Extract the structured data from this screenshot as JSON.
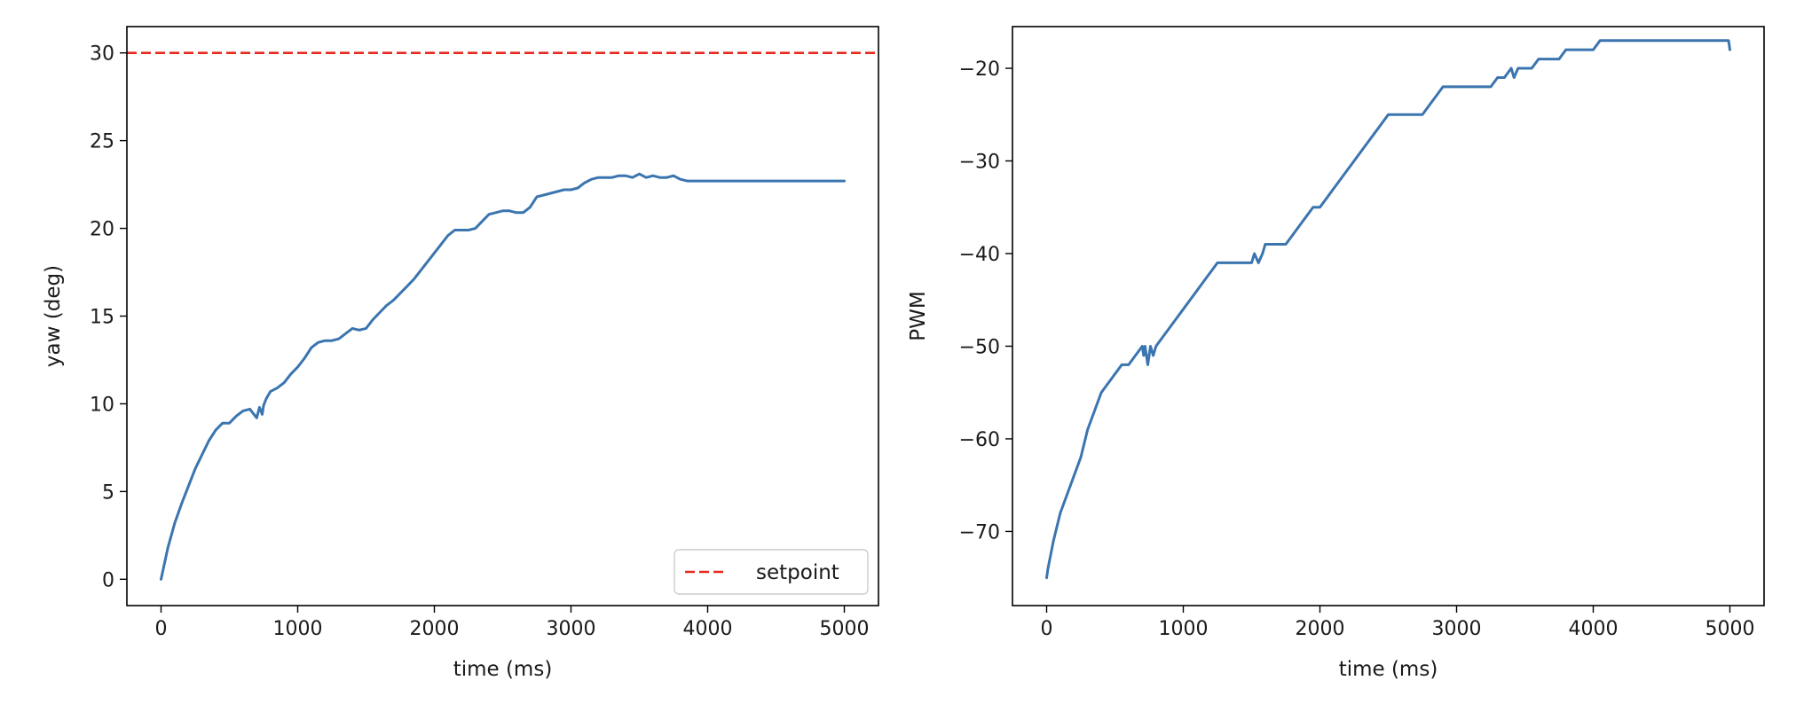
{
  "chart_data": [
    {
      "type": "line",
      "xlabel": "time (ms)",
      "ylabel": "yaw (deg)",
      "xlim": [
        -250,
        5250
      ],
      "ylim": [
        -1.5,
        31.5
      ],
      "xticks": [
        0,
        1000,
        2000,
        3000,
        4000,
        5000
      ],
      "yticks": [
        0,
        5,
        10,
        15,
        20,
        25,
        30
      ],
      "grid": false,
      "legend": {
        "position": "lower-right",
        "entries": [
          "setpoint"
        ]
      },
      "hlines": [
        {
          "name": "setpoint",
          "y": 30,
          "color": "#e8281e",
          "style": "dashed"
        }
      ],
      "series": [
        {
          "color": "#3b75af",
          "x": [
            0,
            50,
            100,
            150,
            200,
            250,
            300,
            350,
            400,
            450,
            500,
            550,
            600,
            650,
            700,
            720,
            740,
            750,
            770,
            800,
            850,
            900,
            950,
            1000,
            1050,
            1100,
            1150,
            1200,
            1250,
            1300,
            1350,
            1400,
            1450,
            1500,
            1550,
            1600,
            1650,
            1700,
            1750,
            1800,
            1850,
            1900,
            1950,
            2000,
            2050,
            2100,
            2150,
            2200,
            2250,
            2300,
            2350,
            2400,
            2450,
            2500,
            2550,
            2600,
            2650,
            2700,
            2750,
            2800,
            2850,
            2900,
            2950,
            3000,
            3050,
            3100,
            3150,
            3200,
            3250,
            3300,
            3350,
            3400,
            3450,
            3500,
            3550,
            3600,
            3650,
            3700,
            3750,
            3800,
            3850,
            3900,
            3950,
            4000,
            4050,
            4100,
            4150,
            4200,
            4250,
            4300,
            4350,
            4400,
            4450,
            4500,
            4550,
            4600,
            4650,
            4700,
            4750,
            4800,
            4850,
            4900,
            4950,
            5000
          ],
          "y": [
            0.0,
            1.8,
            3.2,
            4.3,
            5.3,
            6.3,
            7.1,
            7.9,
            8.5,
            8.9,
            8.9,
            9.3,
            9.6,
            9.7,
            9.2,
            9.8,
            9.4,
            9.9,
            10.3,
            10.7,
            10.9,
            11.2,
            11.7,
            12.1,
            12.6,
            13.2,
            13.5,
            13.6,
            13.6,
            13.7,
            14.0,
            14.3,
            14.2,
            14.3,
            14.8,
            15.2,
            15.6,
            15.9,
            16.3,
            16.7,
            17.1,
            17.6,
            18.1,
            18.6,
            19.1,
            19.6,
            19.9,
            19.9,
            19.9,
            20.0,
            20.4,
            20.8,
            20.9,
            21.0,
            21.0,
            20.9,
            20.9,
            21.2,
            21.8,
            21.9,
            22.0,
            22.1,
            22.2,
            22.2,
            22.3,
            22.6,
            22.8,
            22.9,
            22.9,
            22.9,
            23.0,
            23.0,
            22.9,
            23.1,
            22.9,
            23.0,
            22.9,
            22.9,
            23.0,
            22.8,
            22.7,
            22.7,
            22.7,
            22.7,
            22.7,
            22.7,
            22.7,
            22.7,
            22.7,
            22.7,
            22.7,
            22.7,
            22.7,
            22.7,
            22.7,
            22.7,
            22.7,
            22.7,
            22.7,
            22.7,
            22.7,
            22.7,
            22.7,
            22.7
          ]
        }
      ]
    },
    {
      "type": "line",
      "xlabel": "time (ms)",
      "ylabel": "PWM",
      "xlim": [
        -250,
        5250
      ],
      "ylim": [
        -78,
        -15.5
      ],
      "xticks": [
        0,
        1000,
        2000,
        3000,
        4000,
        5000
      ],
      "yticks": [
        -20,
        -30,
        -40,
        -50,
        -60,
        -70
      ],
      "grid": false,
      "series": [
        {
          "color": "#3b75af",
          "x": [
            0,
            10,
            50,
            100,
            150,
            200,
            250,
            300,
            350,
            400,
            450,
            500,
            550,
            600,
            650,
            700,
            710,
            720,
            740,
            760,
            780,
            800,
            850,
            900,
            950,
            1000,
            1050,
            1100,
            1150,
            1200,
            1250,
            1300,
            1350,
            1400,
            1450,
            1500,
            1520,
            1550,
            1580,
            1600,
            1650,
            1700,
            1750,
            1800,
            1850,
            1900,
            1950,
            2000,
            2050,
            2100,
            2150,
            2200,
            2250,
            2300,
            2350,
            2400,
            2450,
            2500,
            2550,
            2600,
            2650,
            2700,
            2750,
            2800,
            2850,
            2900,
            2950,
            3000,
            3050,
            3100,
            3150,
            3200,
            3250,
            3300,
            3350,
            3400,
            3420,
            3450,
            3500,
            3550,
            3600,
            3650,
            3700,
            3750,
            3800,
            3850,
            3900,
            3950,
            4000,
            4050,
            4100,
            4150,
            4200,
            4250,
            4300,
            4350,
            4400,
            4450,
            4500,
            4550,
            4600,
            4650,
            4700,
            4750,
            4800,
            4850,
            4900,
            4950,
            4990,
            5000
          ],
          "y": [
            -75,
            -74,
            -71,
            -68,
            -66,
            -64,
            -62,
            -59,
            -57,
            -55,
            -54,
            -53,
            -52,
            -52,
            -51,
            -50,
            -51,
            -50,
            -52,
            -50,
            -51,
            -50,
            -49,
            -48,
            -47,
            -46,
            -45,
            -44,
            -43,
            -42,
            -41,
            -41,
            -41,
            -41,
            -41,
            -41,
            -40,
            -41,
            -40,
            -39,
            -39,
            -39,
            -39,
            -38,
            -37,
            -36,
            -35,
            -35,
            -34,
            -33,
            -32,
            -31,
            -30,
            -29,
            -28,
            -27,
            -26,
            -25,
            -25,
            -25,
            -25,
            -25,
            -25,
            -24,
            -23,
            -22,
            -22,
            -22,
            -22,
            -22,
            -22,
            -22,
            -22,
            -21,
            -21,
            -20,
            -21,
            -20,
            -20,
            -20,
            -19,
            -19,
            -19,
            -19,
            -18,
            -18,
            -18,
            -18,
            -18,
            -17,
            -17,
            -17,
            -17,
            -17,
            -17,
            -17,
            -17,
            -17,
            -17,
            -17,
            -17,
            -17,
            -17,
            -17,
            -17,
            -17,
            -17,
            -17,
            -17,
            -18
          ]
        }
      ]
    }
  ]
}
